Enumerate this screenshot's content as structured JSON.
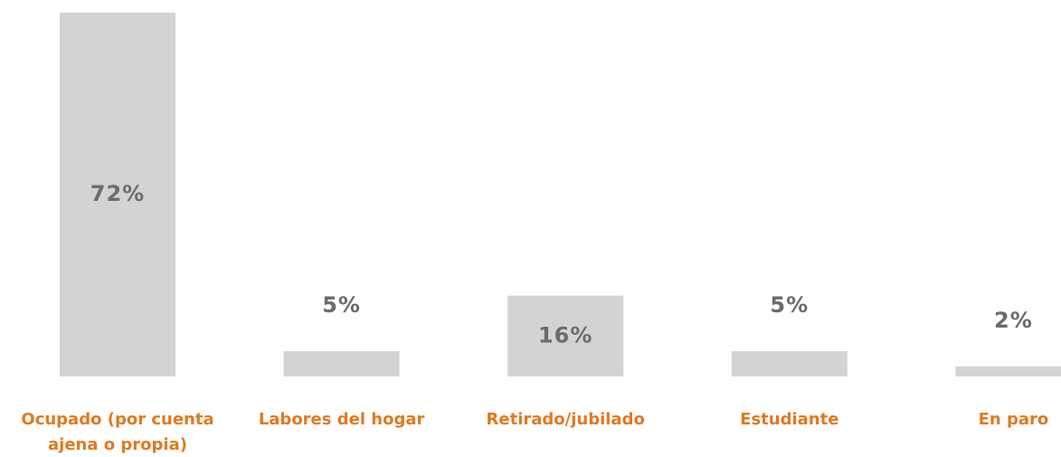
{
  "chart_data": {
    "type": "bar",
    "categories": [
      "Ocupado (por cuenta ajena o propia)",
      "Labores del hogar",
      "Retirado/jubilado",
      "Estudiante",
      "En paro"
    ],
    "values": [
      72,
      5,
      16,
      5,
      2
    ],
    "value_labels": [
      "72%",
      "5%",
      "16%",
      "5%",
      "2%"
    ],
    "color": "#d3d3d3"
  }
}
